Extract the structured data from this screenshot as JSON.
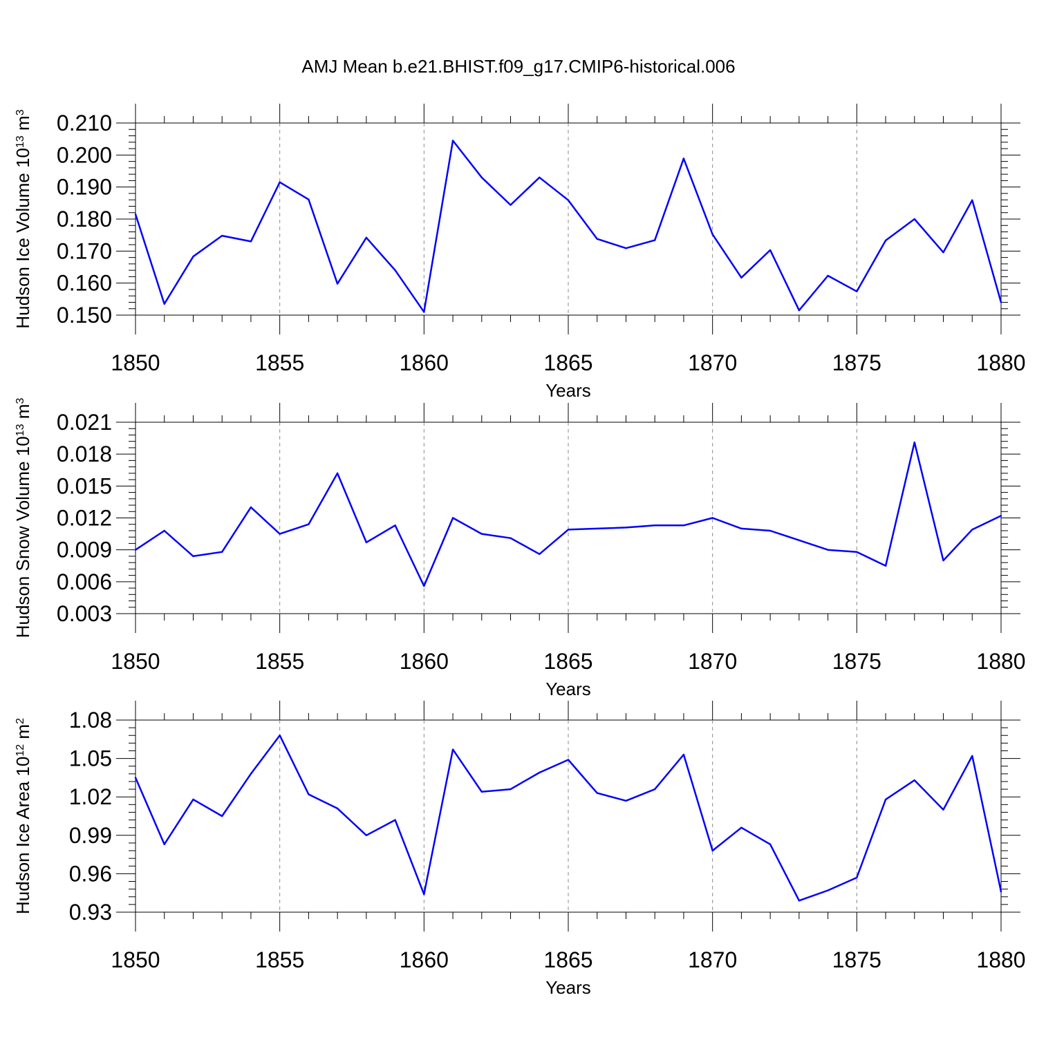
{
  "figure_title": "AMJ Mean b.e21.BHIST.f09_g17.CMIP6-historical.006",
  "colors": {
    "series": "#0000ff",
    "axis": "#000000",
    "grid": "#888888"
  },
  "chart_data": [
    {
      "type": "line",
      "title": "AMJ Mean b.e21.BHIST.f09_g17.CMIP6-historical.006",
      "xlabel": "Years",
      "ylabel": {
        "prefix": "Hudson Ice Volume 10",
        "exp": "13",
        "mid": " m",
        "unit_exp": "3"
      },
      "xlim": [
        1850,
        1880
      ],
      "ylim": [
        0.15,
        0.21
      ],
      "xticks": [
        1850,
        1855,
        1860,
        1865,
        1870,
        1875,
        1880
      ],
      "yticks": [
        "0.150",
        "0.160",
        "0.170",
        "0.180",
        "0.190",
        "0.200",
        "0.210"
      ],
      "grid": "vertical-dashed",
      "x": [
        1850,
        1851,
        1852,
        1853,
        1854,
        1855,
        1856,
        1857,
        1858,
        1859,
        1860,
        1861,
        1862,
        1863,
        1864,
        1865,
        1866,
        1867,
        1868,
        1869,
        1870,
        1871,
        1872,
        1873,
        1874,
        1875,
        1876,
        1877,
        1878,
        1879,
        1880
      ],
      "values": [
        0.1815,
        0.1535,
        0.1683,
        0.1748,
        0.173,
        0.1915,
        0.1861,
        0.1598,
        0.1742,
        0.164,
        0.151,
        0.2045,
        0.193,
        0.1844,
        0.193,
        0.1859,
        0.1738,
        0.1709,
        0.1734,
        0.1989,
        0.1752,
        0.1617,
        0.1703,
        0.1515,
        0.1623,
        0.1574,
        0.1733,
        0.18,
        0.1696,
        0.1859,
        0.154
      ]
    },
    {
      "type": "line",
      "xlabel": "Years",
      "ylabel": {
        "prefix": "Hudson Snow Volume 10",
        "exp": "13",
        "mid": " m",
        "unit_exp": "3"
      },
      "xlim": [
        1850,
        1880
      ],
      "ylim": [
        0.003,
        0.021
      ],
      "xticks": [
        1850,
        1855,
        1860,
        1865,
        1870,
        1875,
        1880
      ],
      "yticks": [
        "0.003",
        "0.006",
        "0.009",
        "0.012",
        "0.015",
        "0.018",
        "0.021"
      ],
      "grid": "vertical-dashed",
      "x": [
        1850,
        1851,
        1852,
        1853,
        1854,
        1855,
        1856,
        1857,
        1858,
        1859,
        1860,
        1861,
        1862,
        1863,
        1864,
        1865,
        1866,
        1867,
        1868,
        1869,
        1870,
        1871,
        1872,
        1873,
        1874,
        1875,
        1876,
        1877,
        1878,
        1879,
        1880
      ],
      "values": [
        0.009,
        0.0108,
        0.0084,
        0.0088,
        0.013,
        0.0105,
        0.0114,
        0.0162,
        0.0097,
        0.0113,
        0.0056,
        0.012,
        0.0105,
        0.0101,
        0.0086,
        0.0109,
        0.011,
        0.0111,
        0.0113,
        0.0113,
        0.012,
        0.011,
        0.0108,
        0.0099,
        0.009,
        0.0088,
        0.0075,
        0.0191,
        0.008,
        0.0109,
        0.0122
      ]
    },
    {
      "type": "line",
      "xlabel": "Years",
      "ylabel": {
        "prefix": "Hudson Ice Area 10",
        "exp": "12",
        "mid": " m",
        "unit_exp": "2"
      },
      "xlim": [
        1850,
        1880
      ],
      "ylim": [
        0.93,
        1.08
      ],
      "xticks": [
        1850,
        1855,
        1860,
        1865,
        1870,
        1875,
        1880
      ],
      "yticks": [
        "0.93",
        "0.96",
        "0.99",
        "1.02",
        "1.05",
        "1.08"
      ],
      "grid": "vertical-dashed",
      "x": [
        1850,
        1851,
        1852,
        1853,
        1854,
        1855,
        1856,
        1857,
        1858,
        1859,
        1860,
        1861,
        1862,
        1863,
        1864,
        1865,
        1866,
        1867,
        1868,
        1869,
        1870,
        1871,
        1872,
        1873,
        1874,
        1875,
        1876,
        1877,
        1878,
        1879,
        1880
      ],
      "values": [
        1.035,
        0.983,
        1.018,
        1.005,
        1.038,
        1.068,
        1.022,
        1.011,
        0.99,
        1.002,
        0.944,
        1.057,
        1.024,
        1.026,
        1.039,
        1.049,
        1.023,
        1.017,
        1.026,
        1.053,
        0.978,
        0.996,
        0.983,
        0.939,
        0.947,
        0.957,
        1.018,
        1.033,
        1.01,
        1.052,
        0.946
      ]
    }
  ]
}
